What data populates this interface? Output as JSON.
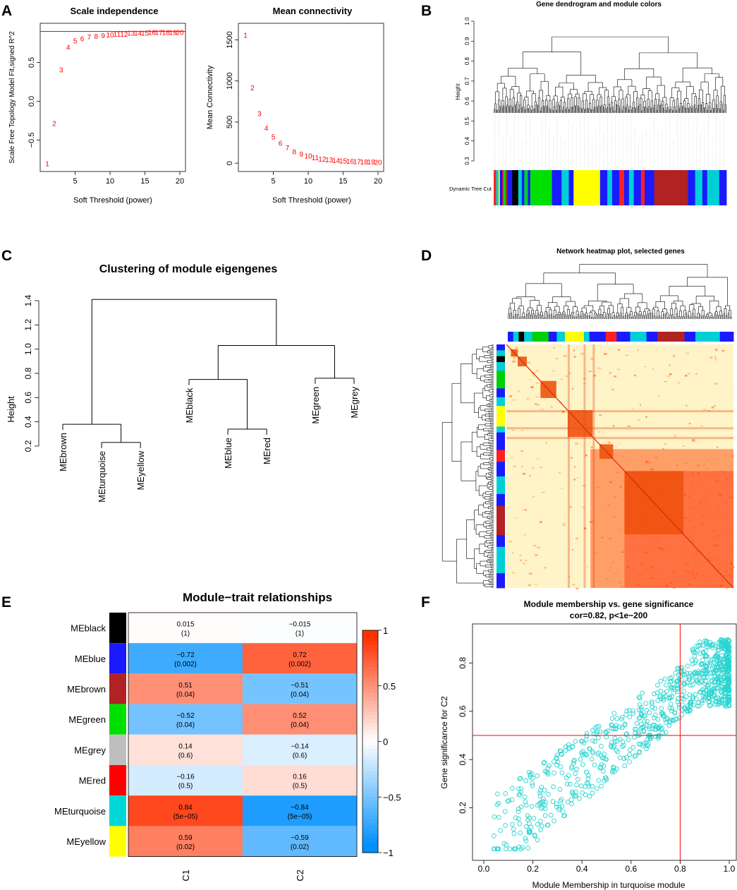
{
  "panels": {
    "A": {
      "label": "A"
    },
    "B": {
      "label": "B"
    },
    "C": {
      "label": "C"
    },
    "D": {
      "label": "D"
    },
    "E": {
      "label": "E"
    },
    "F": {
      "label": "F"
    }
  },
  "chart_data": [
    {
      "id": "A1",
      "type": "scatter",
      "title": "Scale independence",
      "xlabel": "Soft Threshold (power)",
      "ylabel": "Scale Free Topology Model Fit,signed R^2",
      "xlim": [
        1,
        20
      ],
      "ylim": [
        -0.85,
        0.95
      ],
      "x_ticks": [
        5,
        10,
        15,
        20
      ],
      "y_ticks": [
        -0.5,
        0.0,
        0.5
      ],
      "y_tick_labels": [
        "−0.5",
        "0.0",
        "0.5"
      ],
      "hline": 0.9,
      "points": [
        {
          "x": 1,
          "y": -0.8,
          "label": "1"
        },
        {
          "x": 2,
          "y": -0.28,
          "label": "2"
        },
        {
          "x": 3,
          "y": 0.41,
          "label": "3"
        },
        {
          "x": 4,
          "y": 0.7,
          "label": "4"
        },
        {
          "x": 5,
          "y": 0.78,
          "label": "5"
        },
        {
          "x": 6,
          "y": 0.81,
          "label": "6"
        },
        {
          "x": 7,
          "y": 0.83,
          "label": "7"
        },
        {
          "x": 8,
          "y": 0.84,
          "label": "8"
        },
        {
          "x": 9,
          "y": 0.85,
          "label": "9"
        },
        {
          "x": 10,
          "y": 0.86,
          "label": "10"
        },
        {
          "x": 11,
          "y": 0.87,
          "label": "11"
        },
        {
          "x": 12,
          "y": 0.87,
          "label": "12"
        },
        {
          "x": 13,
          "y": 0.88,
          "label": "13"
        },
        {
          "x": 14,
          "y": 0.88,
          "label": "14"
        },
        {
          "x": 15,
          "y": 0.88,
          "label": "15"
        },
        {
          "x": 16,
          "y": 0.89,
          "label": "16"
        },
        {
          "x": 17,
          "y": 0.89,
          "label": "17"
        },
        {
          "x": 18,
          "y": 0.89,
          "label": "18"
        },
        {
          "x": 19,
          "y": 0.89,
          "label": "19"
        },
        {
          "x": 20,
          "y": 0.89,
          "label": "20"
        }
      ]
    },
    {
      "id": "A2",
      "type": "scatter",
      "title": "Mean connectivity",
      "xlabel": "Soft Threshold (power)",
      "ylabel": "Mean Connectivity",
      "xlim": [
        1,
        20
      ],
      "ylim": [
        -50,
        1650
      ],
      "x_ticks": [
        5,
        10,
        15,
        20
      ],
      "y_ticks": [
        0,
        500,
        1000,
        1500
      ],
      "points": [
        {
          "x": 1,
          "y": 1560,
          "label": "1"
        },
        {
          "x": 2,
          "y": 920,
          "label": "2"
        },
        {
          "x": 3,
          "y": 605,
          "label": "3"
        },
        {
          "x": 4,
          "y": 430,
          "label": "4"
        },
        {
          "x": 5,
          "y": 325,
          "label": "5"
        },
        {
          "x": 6,
          "y": 245,
          "label": "6"
        },
        {
          "x": 7,
          "y": 190,
          "label": "7"
        },
        {
          "x": 8,
          "y": 145,
          "label": "8"
        },
        {
          "x": 9,
          "y": 115,
          "label": "9"
        },
        {
          "x": 10,
          "y": 90,
          "label": "10"
        },
        {
          "x": 11,
          "y": 70,
          "label": "11"
        },
        {
          "x": 12,
          "y": 55,
          "label": "12"
        },
        {
          "x": 13,
          "y": 45,
          "label": "13"
        },
        {
          "x": 14,
          "y": 38,
          "label": "14"
        },
        {
          "x": 15,
          "y": 32,
          "label": "15"
        },
        {
          "x": 16,
          "y": 27,
          "label": "16"
        },
        {
          "x": 17,
          "y": 23,
          "label": "17"
        },
        {
          "x": 18,
          "y": 20,
          "label": "18"
        },
        {
          "x": 19,
          "y": 18,
          "label": "19"
        },
        {
          "x": 20,
          "y": 16,
          "label": "20"
        }
      ]
    },
    {
      "id": "B",
      "type": "dendrogram",
      "title": "Gene dendrogram and module colors",
      "ylabel": "Height",
      "ylim": [
        0.3,
        1.0
      ],
      "y_ticks": [
        0.3,
        0.4,
        0.5,
        0.6,
        0.7,
        0.8,
        0.9,
        1.0
      ],
      "y_tick_labels": [
        "0.3",
        "0.4",
        "0.5",
        "0.6",
        "0.7",
        "0.8",
        "0.9",
        "1.0"
      ],
      "colorbar_label": "Dynamic Tree Cut",
      "module_strip": [
        {
          "color": "#ff2020",
          "w": 1
        },
        {
          "color": "#00ccd4",
          "w": 1
        },
        {
          "color": "#f0f000",
          "w": 0.6
        },
        {
          "color": "#1010ff",
          "w": 1
        },
        {
          "color": "#ff2020",
          "w": 0.5
        },
        {
          "color": "#00d000",
          "w": 1
        },
        {
          "color": "#b22222",
          "w": 0.6
        },
        {
          "color": "#1a1aff",
          "w": 2
        },
        {
          "color": "#000000",
          "w": 2.5
        },
        {
          "color": "#00ccd4",
          "w": 1.5
        },
        {
          "color": "#1a1aff",
          "w": 1
        },
        {
          "color": "#00cc33",
          "w": 1.5
        },
        {
          "color": "#1a1aff",
          "w": 1
        },
        {
          "color": "#00e000",
          "w": 9
        },
        {
          "color": "#1a1aff",
          "w": 4
        },
        {
          "color": "#00d0d6",
          "w": 3
        },
        {
          "color": "#1a1aff",
          "w": 2
        },
        {
          "color": "#ffff00",
          "w": 11
        },
        {
          "color": "#1a1aff",
          "w": 3
        },
        {
          "color": "#00d0d6",
          "w": 2
        },
        {
          "color": "#1a1aff",
          "w": 3
        },
        {
          "color": "#ff2020",
          "w": 2
        },
        {
          "color": "#1a1aff",
          "w": 2
        },
        {
          "color": "#00d0d6",
          "w": 2
        },
        {
          "color": "#1a1aff",
          "w": 3
        },
        {
          "color": "#ff2020",
          "w": 1.5
        },
        {
          "color": "#1a1aff",
          "w": 4
        },
        {
          "color": "#b22222",
          "w": 14
        },
        {
          "color": "#1a1aff",
          "w": 3
        },
        {
          "color": "#00d0d6",
          "w": 3
        },
        {
          "color": "#1a1aff",
          "w": 2
        },
        {
          "color": "#00d0d6",
          "w": 5
        },
        {
          "color": "#1a1aff",
          "w": 3
        }
      ]
    },
    {
      "id": "C",
      "type": "dendrogram",
      "title": "Clustering of module eigengenes",
      "ylabel": "Height",
      "ylim": [
        0.2,
        1.4
      ],
      "y_ticks": [
        0.2,
        0.4,
        0.6,
        0.8,
        1.0,
        1.2,
        1.4
      ],
      "y_tick_labels": [
        "0.2",
        "0.4",
        "0.6",
        "0.8",
        "1.0",
        "1.2",
        "1.4"
      ],
      "leaves": [
        "MEbrown",
        "MEturquoise",
        "MEyellow",
        "MEblack",
        "MEblue",
        "MEred",
        "MEgreen",
        "MEgrey"
      ],
      "leaf_x": [
        1,
        2,
        3,
        4.25,
        5.25,
        6.25,
        7.5,
        8.5
      ],
      "merges": [
        {
          "a": 2,
          "b": 3,
          "h": 0.23
        },
        {
          "a": 5,
          "b": 6,
          "h": 0.34
        },
        {
          "a": 1,
          "b": "m0",
          "h": 0.38
        },
        {
          "a": 4,
          "b": "m1",
          "h": 0.75
        },
        {
          "a": 7,
          "b": 8,
          "h": 0.76
        },
        {
          "a": "m3",
          "b": "m4",
          "h": 1.03
        },
        {
          "a": "m2",
          "b": "m5",
          "h": 1.41
        }
      ]
    },
    {
      "id": "D",
      "type": "heatmap",
      "title": "Network heatmap plot, selected genes",
      "module_strip": [
        {
          "color": "#1a1aff",
          "w": 2
        },
        {
          "color": "#00ccd4",
          "w": 2
        },
        {
          "color": "#000000",
          "w": 2
        },
        {
          "color": "#00ccd4",
          "w": 3
        },
        {
          "color": "#00d000",
          "w": 6
        },
        {
          "color": "#1a1aff",
          "w": 3
        },
        {
          "color": "#00d0d6",
          "w": 3
        },
        {
          "color": "#ffff00",
          "w": 7
        },
        {
          "color": "#00d0d6",
          "w": 2
        },
        {
          "color": "#1a1aff",
          "w": 6
        },
        {
          "color": "#ff2020",
          "w": 4
        },
        {
          "color": "#1a1aff",
          "w": 5
        },
        {
          "color": "#00d0d6",
          "w": 6
        },
        {
          "color": "#1a1aff",
          "w": 4
        },
        {
          "color": "#b22222",
          "w": 10
        },
        {
          "color": "#1a1aff",
          "w": 4
        },
        {
          "color": "#00d0d6",
          "w": 9
        },
        {
          "color": "#1a1aff",
          "w": 5
        }
      ],
      "blocks": [
        {
          "start": 0.02,
          "end": 0.05
        },
        {
          "start": 0.05,
          "end": 0.09
        },
        {
          "start": 0.15,
          "end": 0.22
        },
        {
          "start": 0.27,
          "end": 0.38
        },
        {
          "start": 0.41,
          "end": 0.47
        },
        {
          "start": 0.52,
          "end": 0.78
        }
      ]
    },
    {
      "id": "E",
      "type": "heatmap",
      "title": "Module−trait relationships",
      "rows": [
        "MEblack",
        "MEblue",
        "MEbrown",
        "MEgreen",
        "MEgrey",
        "MEred",
        "MEturquoise",
        "MEyellow"
      ],
      "row_colors": [
        "#000000",
        "#1a1aff",
        "#b22222",
        "#00e000",
        "#bebebe",
        "#ff0000",
        "#00d8d8",
        "#ffff00"
      ],
      "columns": [
        "C1",
        "C2"
      ],
      "values": [
        [
          0.015,
          -0.015
        ],
        [
          -0.72,
          0.72
        ],
        [
          0.51,
          -0.51
        ],
        [
          -0.52,
          0.52
        ],
        [
          0.14,
          -0.14
        ],
        [
          -0.16,
          0.16
        ],
        [
          0.84,
          -0.84
        ],
        [
          0.59,
          -0.59
        ]
      ],
      "cell_labels": [
        [
          "0.015",
          "−0.015"
        ],
        [
          "−0.72",
          "0.72"
        ],
        [
          "0.51",
          "−0.51"
        ],
        [
          "−0.52",
          "0.52"
        ],
        [
          "0.14",
          "−0.14"
        ],
        [
          "−0.16",
          "0.16"
        ],
        [
          "0.84",
          "−0.84"
        ],
        [
          "0.59",
          "−0.59"
        ]
      ],
      "pvalues": [
        [
          "(1)",
          "(1)"
        ],
        [
          "(0.002)",
          "(0.002)"
        ],
        [
          "(0.04)",
          "(0.04)"
        ],
        [
          "(0.04)",
          "(0.04)"
        ],
        [
          "(0.6)",
          "(0.6)"
        ],
        [
          "(0.5)",
          "(0.5)"
        ],
        [
          "(5e−05)",
          "(5e−05)"
        ],
        [
          "(0.02)",
          "(0.02)"
        ]
      ],
      "legend_ticks": [
        1,
        0.5,
        0,
        -0.5,
        -1
      ],
      "legend_tick_labels": [
        "1",
        "0.5",
        "0",
        "−0.5",
        "−1"
      ]
    },
    {
      "id": "F",
      "type": "scatter",
      "title": "Module membership vs. gene significance",
      "subtitle": "cor=0.82, p<1e−200",
      "xlabel": "Module Membership in turquoise module",
      "ylabel": "Gene significance for  C2",
      "xlim": [
        0.0,
        1.0
      ],
      "ylim": [
        0.0,
        0.95
      ],
      "x_ticks": [
        0.0,
        0.2,
        0.4,
        0.6,
        0.8,
        1.0
      ],
      "x_tick_labels": [
        "0.0",
        "0.2",
        "0.4",
        "0.6",
        "0.8",
        "1.0"
      ],
      "y_ticks": [
        0.2,
        0.4,
        0.6,
        0.8
      ],
      "y_tick_labels": [
        "0.2",
        "0.4",
        "0.6",
        "0.8"
      ],
      "vline": 0.8,
      "hline": 0.5,
      "point_count": 900,
      "correlation": 0.82,
      "color": "#2ad4d0"
    }
  ]
}
